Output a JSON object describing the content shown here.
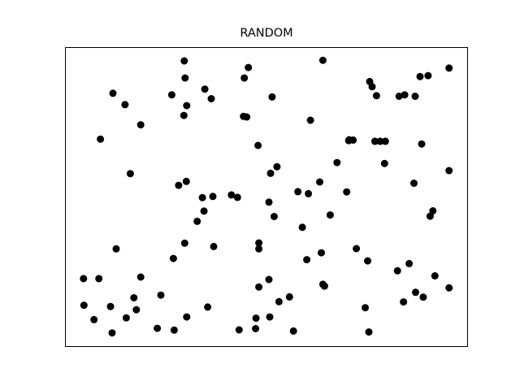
{
  "chart_data": {
    "type": "scatter",
    "title": "RANDOM",
    "xlabel": "",
    "ylabel": "",
    "xlim": [
      0,
      1
    ],
    "ylim": [
      0,
      1
    ],
    "grid": false,
    "axes_ticks": false,
    "marker_color": "#000000",
    "series": [
      {
        "points": [
          [
            0.296,
            0.954
          ],
          [
            0.64,
            0.956
          ],
          [
            0.953,
            0.93
          ],
          [
            0.455,
            0.932
          ],
          [
            0.298,
            0.897
          ],
          [
            0.445,
            0.897
          ],
          [
            0.756,
            0.885
          ],
          [
            0.762,
            0.868
          ],
          [
            0.881,
            0.902
          ],
          [
            0.901,
            0.905
          ],
          [
            0.347,
            0.86
          ],
          [
            0.363,
            0.828
          ],
          [
            0.773,
            0.838
          ],
          [
            0.829,
            0.836
          ],
          [
            0.843,
            0.841
          ],
          [
            0.869,
            0.836
          ],
          [
            0.265,
            0.841
          ],
          [
            0.302,
            0.805
          ],
          [
            0.514,
            0.834
          ],
          [
            0.119,
            0.846
          ],
          [
            0.149,
            0.808
          ],
          [
            0.295,
            0.772
          ],
          [
            0.443,
            0.769
          ],
          [
            0.451,
            0.767
          ],
          [
            0.609,
            0.756
          ],
          [
            0.188,
            0.741
          ],
          [
            0.088,
            0.693
          ],
          [
            0.479,
            0.672
          ],
          [
            0.704,
            0.688
          ],
          [
            0.715,
            0.69
          ],
          [
            0.782,
            0.686
          ],
          [
            0.795,
            0.686
          ],
          [
            0.705,
            0.691
          ],
          [
            0.769,
            0.686
          ],
          [
            0.885,
            0.677
          ],
          [
            0.793,
            0.612
          ],
          [
            0.953,
            0.588
          ],
          [
            0.675,
            0.615
          ],
          [
            0.526,
            0.601
          ],
          [
            0.51,
            0.579
          ],
          [
            0.162,
            0.578
          ],
          [
            0.301,
            0.552
          ],
          [
            0.282,
            0.539
          ],
          [
            0.632,
            0.55
          ],
          [
            0.866,
            0.546
          ],
          [
            0.578,
            0.518
          ],
          [
            0.604,
            0.511
          ],
          [
            0.699,
            0.517
          ],
          [
            0.413,
            0.507
          ],
          [
            0.428,
            0.499
          ],
          [
            0.341,
            0.498
          ],
          [
            0.367,
            0.502
          ],
          [
            0.506,
            0.483
          ],
          [
            0.913,
            0.454
          ],
          [
            0.345,
            0.453
          ],
          [
            0.519,
            0.435
          ],
          [
            0.906,
            0.436
          ],
          [
            0.658,
            0.44
          ],
          [
            0.328,
            0.419
          ],
          [
            0.589,
            0.399
          ],
          [
            0.127,
            0.327
          ],
          [
            0.297,
            0.346
          ],
          [
            0.369,
            0.335
          ],
          [
            0.481,
            0.347
          ],
          [
            0.481,
            0.327
          ],
          [
            0.723,
            0.328
          ],
          [
            0.636,
            0.314
          ],
          [
            0.269,
            0.295
          ],
          [
            0.6,
            0.291
          ],
          [
            0.751,
            0.287
          ],
          [
            0.825,
            0.254
          ],
          [
            0.854,
            0.278
          ],
          [
            0.046,
            0.228
          ],
          [
            0.084,
            0.228
          ],
          [
            0.188,
            0.233
          ],
          [
            0.506,
            0.225
          ],
          [
            0.481,
            0.2
          ],
          [
            0.64,
            0.209
          ],
          [
            0.644,
            0.203
          ],
          [
            0.918,
            0.237
          ],
          [
            0.953,
            0.197
          ],
          [
            0.238,
            0.173
          ],
          [
            0.171,
            0.164
          ],
          [
            0.557,
            0.167
          ],
          [
            0.531,
            0.151
          ],
          [
            0.87,
            0.182
          ],
          [
            0.889,
            0.166
          ],
          [
            0.84,
            0.15
          ],
          [
            0.047,
            0.139
          ],
          [
            0.113,
            0.135
          ],
          [
            0.177,
            0.124
          ],
          [
            0.745,
            0.131
          ],
          [
            0.072,
            0.091
          ],
          [
            0.152,
            0.097
          ],
          [
            0.302,
            0.1
          ],
          [
            0.354,
            0.133
          ],
          [
            0.474,
            0.096
          ],
          [
            0.508,
            0.1
          ],
          [
            0.117,
            0.047
          ],
          [
            0.229,
            0.062
          ],
          [
            0.271,
            0.056
          ],
          [
            0.432,
            0.057
          ],
          [
            0.567,
            0.053
          ],
          [
            0.754,
            0.05
          ],
          [
            0.473,
            0.061
          ]
        ]
      }
    ]
  }
}
